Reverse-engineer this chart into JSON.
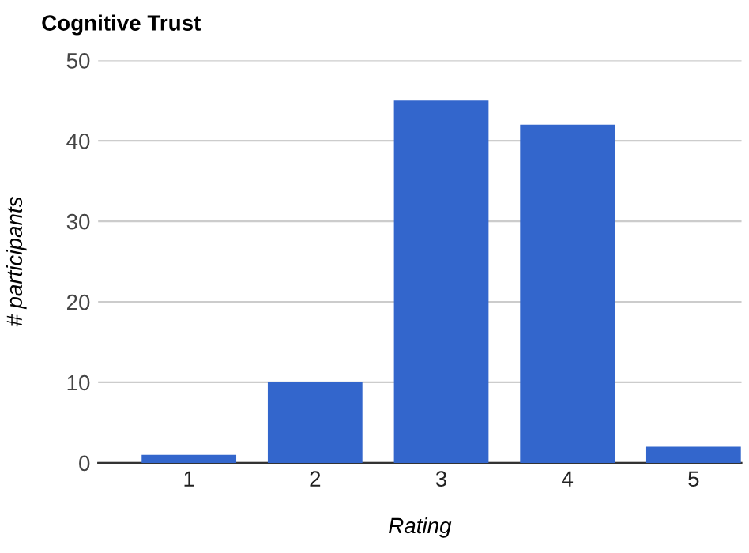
{
  "chart_data": {
    "type": "bar",
    "title": "Cognitive Trust",
    "xlabel": "Rating",
    "ylabel": "# participants",
    "categories": [
      "1",
      "2",
      "3",
      "4",
      "5"
    ],
    "values": [
      1,
      10,
      45,
      42,
      2
    ],
    "color": "#3366cc",
    "ylim": [
      0,
      50
    ],
    "yticks": [
      0,
      10,
      20,
      30,
      40,
      50
    ],
    "grid": "y"
  }
}
